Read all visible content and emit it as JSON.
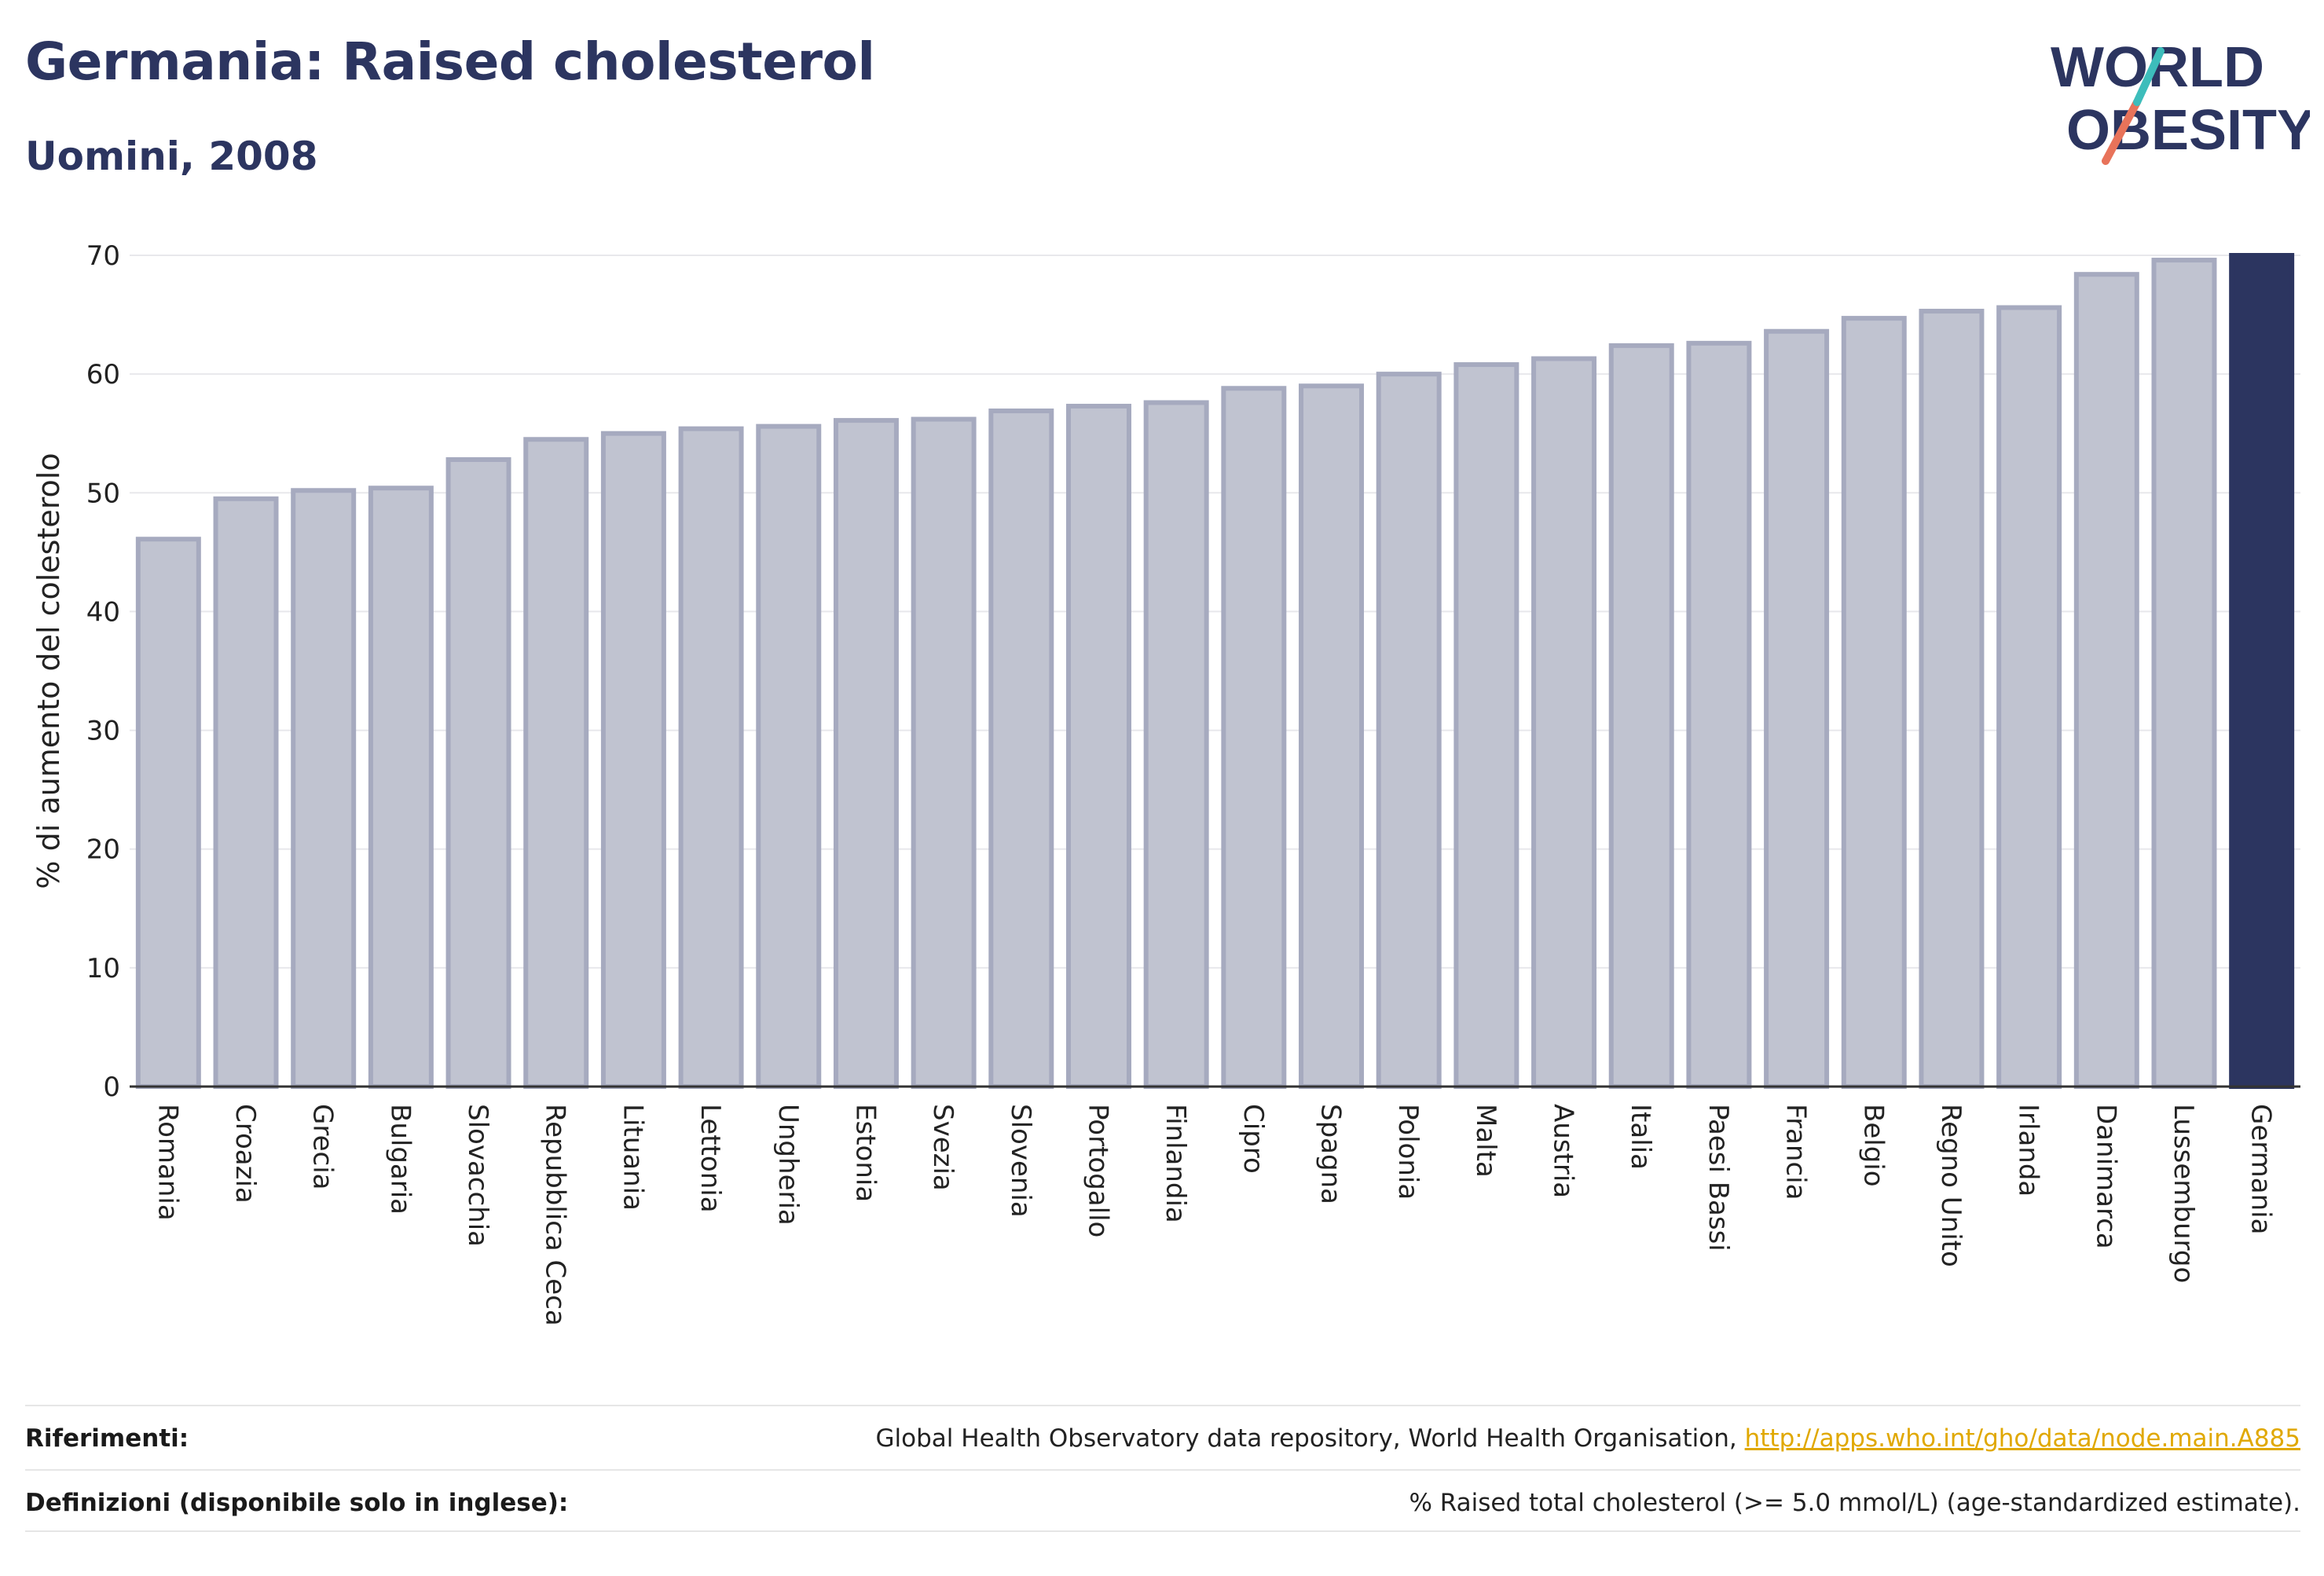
{
  "header": {
    "title": "Germania: Raised cholesterol",
    "subtitle": "Uomini, 2008"
  },
  "logo": {
    "line1": "WORLD",
    "line2": "OBESITY",
    "colors": {
      "text": "#2c3560",
      "slash_teal": "#3dbdbb",
      "slash_coral": "#e8735a"
    }
  },
  "chart_data": {
    "type": "bar",
    "ylabel": "% di aumento del colesterolo",
    "xlabel": "",
    "ylim": [
      0,
      70
    ],
    "yticks": [
      0,
      10,
      20,
      30,
      40,
      50,
      60,
      70
    ],
    "grid": true,
    "categories": [
      "Romania",
      "Croazia",
      "Grecia",
      "Bulgaria",
      "Slovacchia",
      "Repubblica Ceca",
      "Lituania",
      "Lettonia",
      "Ungheria",
      "Estonia",
      "Svezia",
      "Slovenia",
      "Portogallo",
      "Finlandia",
      "Cipro",
      "Spagna",
      "Polonia",
      "Malta",
      "Austria",
      "Italia",
      "Paesi Bassi",
      "Francia",
      "Belgio",
      "Regno Unito",
      "Irlanda",
      "Danimarca",
      "Lussemburgo",
      "Germania"
    ],
    "values": [
      46.1,
      49.5,
      50.2,
      50.4,
      52.8,
      54.5,
      55.0,
      55.4,
      55.6,
      56.1,
      56.2,
      56.9,
      57.3,
      57.6,
      58.8,
      59.0,
      60.0,
      60.8,
      61.3,
      62.4,
      62.6,
      63.6,
      64.7,
      65.3,
      65.6,
      68.4,
      69.6,
      70.0
    ],
    "highlight": "Germania",
    "colors": {
      "bar": "#c0c3d0",
      "bar_border": "#a6aabf",
      "highlight": "#2c3560",
      "grid": "#e8e8ec",
      "axis": "#333333"
    }
  },
  "footer": {
    "references_label": "Riferimenti:",
    "references_text": "Global Health Observatory data repository, World Health Organisation, ",
    "references_link": "http://apps.who.int/gho/data/node.main.A885",
    "definitions_label": "Definizioni (disponibile solo in inglese):",
    "definitions_text": "% Raised total cholesterol (>= 5.0 mmol/L) (age-standardized estimate)."
  }
}
